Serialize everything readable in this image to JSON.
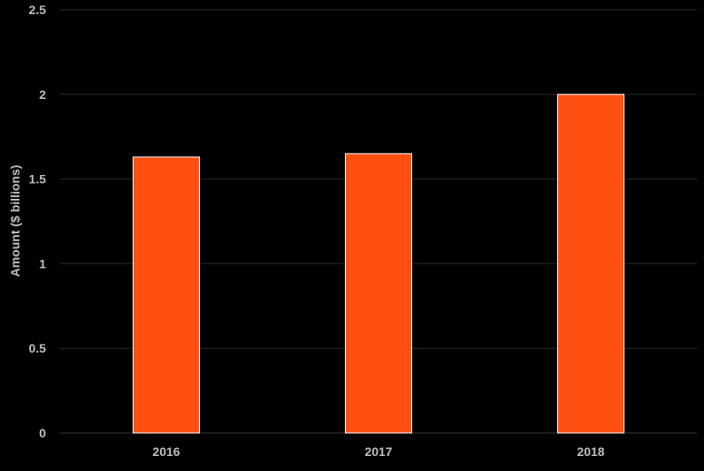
{
  "chart_data": {
    "type": "bar",
    "categories": [
      "2016",
      "2017",
      "2018"
    ],
    "values": [
      1.63,
      1.65,
      2.0
    ],
    "title": "",
    "xlabel": "",
    "ylabel": "Amount ($ billions)",
    "ylim": [
      0,
      2.5
    ],
    "yticks": [
      "0",
      "0.5",
      "1",
      "1.5",
      "2",
      "2.5"
    ],
    "ytick_values": [
      0,
      0.5,
      1,
      1.5,
      2,
      2.5
    ],
    "grid": true,
    "legend": "none",
    "colors": {
      "bar": "#ff5012",
      "background": "#000000",
      "text": "#bfbfbf"
    }
  }
}
